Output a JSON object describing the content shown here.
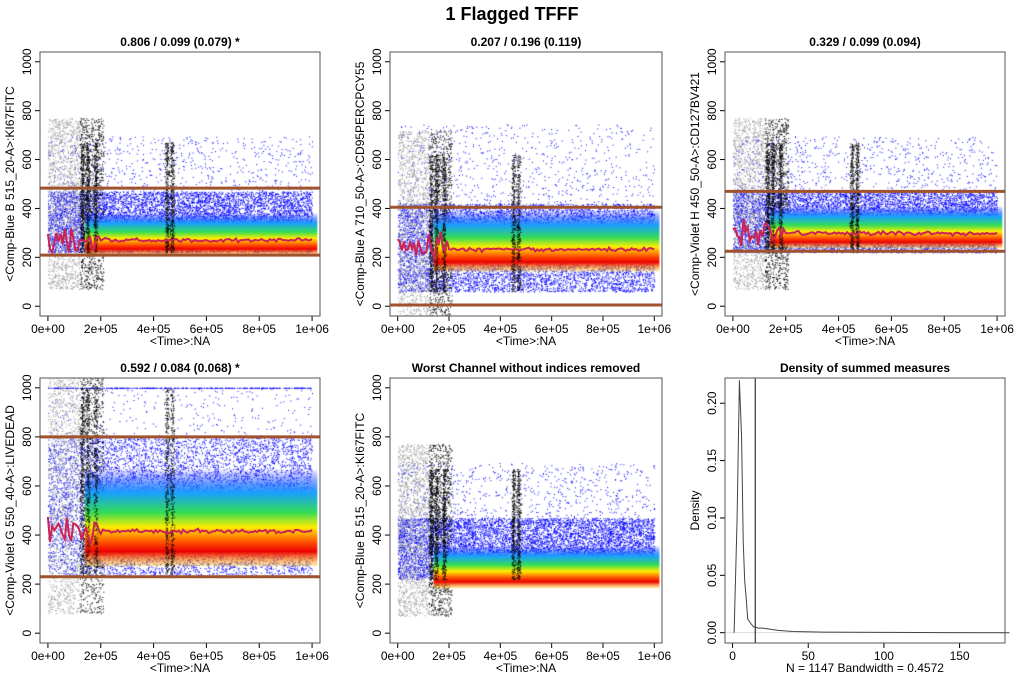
{
  "chart_data": {
    "title": "1 Flagged TFFF",
    "panels": [
      {
        "type": "scatter",
        "title": "0.806 / 0.099 (0.079) *",
        "xlabel": "<Time>:NA",
        "ylabel": "<Comp-Blue B 515_20-A>:KI67FITC",
        "xlim": [
          -30000,
          1030000
        ],
        "ylim": [
          -40,
          1040
        ],
        "xticks": [
          "0e+00",
          "2e+05",
          "4e+05",
          "6e+05",
          "8e+05",
          "1e+06"
        ],
        "yticks": [
          "0",
          "200",
          "400",
          "600",
          "800",
          "1000"
        ],
        "thresholds": [
          483,
          209
        ],
        "median": 270,
        "band": [
          220,
          470
        ]
      },
      {
        "type": "scatter",
        "title": "0.207 / 0.196 (0.119)",
        "xlabel": "<Time>:NA",
        "ylabel": "<Comp-Blue A 710_50-A>:CD95PERCPCY55",
        "xlim": [
          -30000,
          1030000
        ],
        "ylim": [
          -40,
          1040
        ],
        "xticks": [
          "0e+00",
          "2e+05",
          "4e+05",
          "6e+05",
          "8e+05",
          "1e+06"
        ],
        "yticks": [
          "0",
          "200",
          "400",
          "600",
          "800",
          "1000"
        ],
        "thresholds": [
          405,
          5
        ],
        "median": 232,
        "band": [
          60,
          420
        ]
      },
      {
        "type": "scatter",
        "title": "0.329 / 0.099 (0.094)",
        "xlabel": "<Time>:NA",
        "ylabel": "<Comp-Violet H 450_50-A>:CD127BV421",
        "xlim": [
          -30000,
          1030000
        ],
        "ylim": [
          -40,
          1040
        ],
        "xticks": [
          "0e+00",
          "2e+05",
          "4e+05",
          "6e+05",
          "8e+05",
          "1e+06"
        ],
        "yticks": [
          "0",
          "200",
          "400",
          "600",
          "800",
          "1000"
        ],
        "thresholds": [
          470,
          225
        ],
        "median": 298,
        "band": [
          220,
          470
        ]
      },
      {
        "type": "scatter",
        "title": "0.592 / 0.084 (0.068) *",
        "xlabel": "<Time>:NA",
        "ylabel": "<Comp-Violet G 550_40-A>:LIVEDEAD",
        "xlim": [
          -30000,
          1030000
        ],
        "ylim": [
          -40,
          1040
        ],
        "xticks": [
          "0e+00",
          "2e+05",
          "4e+05",
          "6e+05",
          "8e+05",
          "1e+06"
        ],
        "yticks": [
          "0",
          "200",
          "400",
          "600",
          "800",
          "1000"
        ],
        "thresholds": [
          800,
          230
        ],
        "median": 415,
        "band": [
          230,
          800
        ]
      },
      {
        "type": "scatter",
        "title": "Worst Channel without indices removed",
        "xlabel": "<Time>:NA",
        "ylabel": "<Comp-Blue B 515_20-A>:KI67FITC",
        "xlim": [
          -30000,
          1030000
        ],
        "ylim": [
          -40,
          1040
        ],
        "xticks": [
          "0e+00",
          "2e+05",
          "4e+05",
          "6e+05",
          "8e+05",
          "1e+06"
        ],
        "yticks": [
          "0",
          "200",
          "400",
          "600",
          "800",
          "1000"
        ],
        "thresholds": [],
        "median": null,
        "band": [
          220,
          470
        ]
      },
      {
        "type": "line",
        "title": "Density of summed measures",
        "xlabel": "N = 1147   Bandwidth = 0.4572",
        "ylabel": "Density",
        "xlim": [
          -5,
          180
        ],
        "ylim": [
          -0.009,
          0.222
        ],
        "xticks": [
          0,
          50,
          100,
          150
        ],
        "yticks": [
          "0.00",
          "0.05",
          "0.10",
          "0.15",
          "0.20"
        ],
        "vline": 15,
        "x": [
          1,
          3,
          4.5,
          6,
          7,
          8,
          9,
          10,
          12,
          14,
          17,
          20,
          25,
          30,
          40,
          60,
          100,
          140,
          183
        ],
        "y": [
          0,
          0.1,
          0.22,
          0.17,
          0.08,
          0.045,
          0.03,
          0.012,
          0.008,
          0.005,
          0.004,
          0.004,
          0.003,
          0.002,
          0.001,
          0.0005,
          0.0002,
          0.0001,
          0
        ]
      }
    ]
  },
  "colors": {
    "threshold": "#a0522d",
    "median": "#cc2255",
    "points": "#0000ff"
  }
}
